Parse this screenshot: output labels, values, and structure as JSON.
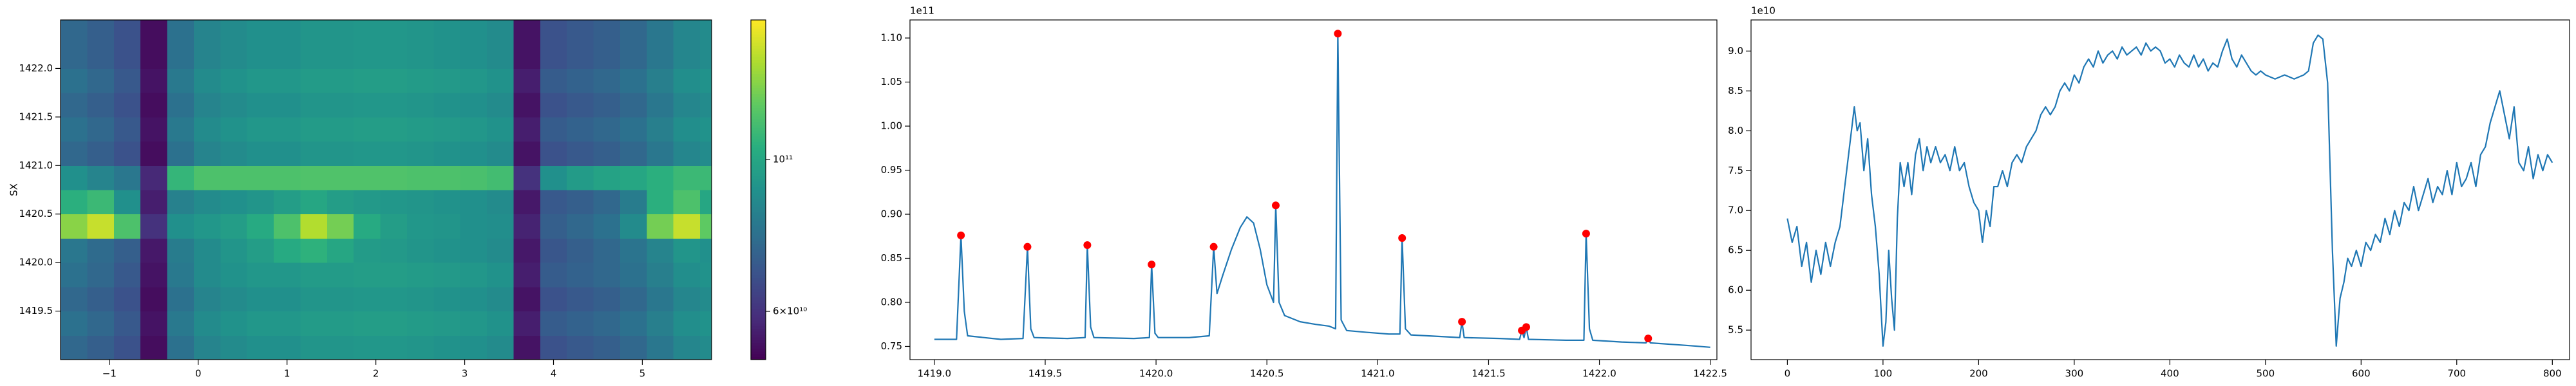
{
  "chart_data": [
    {
      "type": "heatmap",
      "ylabel": "SX",
      "x": [
        -1.4,
        -1.1,
        -0.8,
        -0.5,
        -0.2,
        0.1,
        0.4,
        0.7,
        1.0,
        1.3,
        1.6,
        1.9,
        2.2,
        2.5,
        2.8,
        3.1,
        3.4,
        3.7,
        4.0,
        4.3,
        4.6,
        4.9,
        5.2,
        5.5,
        5.8
      ],
      "y": [
        1419.125,
        1419.375,
        1419.625,
        1419.875,
        1420.125,
        1420.375,
        1420.625,
        1420.875,
        1421.125,
        1421.375,
        1421.625,
        1421.875,
        1422.125,
        1422.375
      ],
      "z": [
        [
          75000000000.0,
          72000000000.0,
          68000000000.0,
          53000000000.0,
          78000000000.0,
          85000000000.0,
          88000000000.0,
          90000000000.0,
          90000000000.0,
          92000000000.0,
          92000000000.0,
          93000000000.0,
          93000000000.0,
          92000000000.0,
          91000000000.0,
          90000000000.0,
          88000000000.0,
          54000000000.0,
          68000000000.0,
          70000000000.0,
          72000000000.0,
          75000000000.0,
          80000000000.0,
          86000000000.0,
          88000000000.0
        ],
        [
          78000000000.0,
          75000000000.0,
          70000000000.0,
          54000000000.0,
          81000000000.0,
          88000000000.0,
          91000000000.0,
          93000000000.0,
          93000000000.0,
          95000000000.0,
          95000000000.0,
          96000000000.0,
          96000000000.0,
          95000000000.0,
          94000000000.0,
          93000000000.0,
          91000000000.0,
          56000000000.0,
          71000000000.0,
          73000000000.0,
          75000000000.0,
          78000000000.0,
          83000000000.0,
          89000000000.0,
          91000000000.0
        ],
        [
          75000000000.0,
          72000000000.0,
          68000000000.0,
          53000000000.0,
          78000000000.0,
          85000000000.0,
          88000000000.0,
          90000000000.0,
          90000000000.0,
          92000000000.0,
          92000000000.0,
          93000000000.0,
          93000000000.0,
          92000000000.0,
          91000000000.0,
          90000000000.0,
          88000000000.0,
          54000000000.0,
          68000000000.0,
          70000000000.0,
          72000000000.0,
          75000000000.0,
          80000000000.0,
          86000000000.0,
          88000000000.0
        ],
        [
          78000000000.0,
          75000000000.0,
          70000000000.0,
          54000000000.0,
          81000000000.0,
          88000000000.0,
          91000000000.0,
          93000000000.0,
          93000000000.0,
          95000000000.0,
          95000000000.0,
          96000000000.0,
          96000000000.0,
          95000000000.0,
          94000000000.0,
          93000000000.0,
          91000000000.0,
          56000000000.0,
          71000000000.0,
          73000000000.0,
          75000000000.0,
          78000000000.0,
          83000000000.0,
          89000000000.0,
          91000000000.0
        ],
        [
          80000000000.0,
          76000000000.0,
          72000000000.0,
          55000000000.0,
          82000000000.0,
          88000000000.0,
          92000000000.0,
          96000000000.0,
          102000000000.0,
          106000000000.0,
          100000000000.0,
          95000000000.0,
          94000000000.0,
          92000000000.0,
          91000000000.0,
          90000000000.0,
          88000000000.0,
          55000000000.0,
          69000000000.0,
          72000000000.0,
          75000000000.0,
          79000000000.0,
          85000000000.0,
          92000000000.0,
          90000000000.0
        ],
        [
          130000000000.0,
          145000000000.0,
          115000000000.0,
          60000000000.0,
          90000000000.0,
          93000000000.0,
          96000000000.0,
          102000000000.0,
          115000000000.0,
          140000000000.0,
          125000000000.0,
          102000000000.0,
          96000000000.0,
          93000000000.0,
          92000000000.0,
          90000000000.0,
          89000000000.0,
          57000000000.0,
          72000000000.0,
          75000000000.0,
          78000000000.0,
          88000000000.0,
          125000000000.0,
          145000000000.0,
          120000000000.0
        ],
        [
          105000000000.0,
          110000000000.0,
          90000000000.0,
          56000000000.0,
          84000000000.0,
          88000000000.0,
          90000000000.0,
          92000000000.0,
          96000000000.0,
          100000000000.0,
          96000000000.0,
          94000000000.0,
          93000000000.0,
          92000000000.0,
          91000000000.0,
          90000000000.0,
          88000000000.0,
          55000000000.0,
          70000000000.0,
          72000000000.0,
          75000000000.0,
          82000000000.0,
          105000000000.0,
          115000000000.0,
          100000000000.0
        ],
        [
          90000000000.0,
          85000000000.0,
          80000000000.0,
          58000000000.0,
          108000000000.0,
          115000000000.0,
          115000000000.0,
          115000000000.0,
          115000000000.0,
          116000000000.0,
          116000000000.0,
          116000000000.0,
          116000000000.0,
          115000000000.0,
          115000000000.0,
          114000000000.0,
          112000000000.0,
          60000000000.0,
          90000000000.0,
          95000000000.0,
          98000000000.0,
          100000000000.0,
          105000000000.0,
          110000000000.0,
          110000000000.0
        ],
        [
          75000000000.0,
          72000000000.0,
          68000000000.0,
          53000000000.0,
          78000000000.0,
          85000000000.0,
          88000000000.0,
          90000000000.0,
          90000000000.0,
          92000000000.0,
          92000000000.0,
          93000000000.0,
          93000000000.0,
          92000000000.0,
          91000000000.0,
          90000000000.0,
          88000000000.0,
          54000000000.0,
          68000000000.0,
          70000000000.0,
          72000000000.0,
          75000000000.0,
          80000000000.0,
          86000000000.0,
          88000000000.0
        ],
        [
          78000000000.0,
          75000000000.0,
          70000000000.0,
          54000000000.0,
          81000000000.0,
          88000000000.0,
          91000000000.0,
          93000000000.0,
          93000000000.0,
          95000000000.0,
          95000000000.0,
          96000000000.0,
          96000000000.0,
          95000000000.0,
          94000000000.0,
          93000000000.0,
          91000000000.0,
          56000000000.0,
          71000000000.0,
          73000000000.0,
          75000000000.0,
          78000000000.0,
          83000000000.0,
          89000000000.0,
          91000000000.0
        ],
        [
          75000000000.0,
          72000000000.0,
          68000000000.0,
          53000000000.0,
          78000000000.0,
          85000000000.0,
          88000000000.0,
          90000000000.0,
          90000000000.0,
          92000000000.0,
          92000000000.0,
          93000000000.0,
          93000000000.0,
          92000000000.0,
          91000000000.0,
          90000000000.0,
          88000000000.0,
          54000000000.0,
          68000000000.0,
          70000000000.0,
          72000000000.0,
          75000000000.0,
          80000000000.0,
          86000000000.0,
          88000000000.0
        ],
        [
          78000000000.0,
          75000000000.0,
          70000000000.0,
          54000000000.0,
          81000000000.0,
          88000000000.0,
          91000000000.0,
          93000000000.0,
          93000000000.0,
          95000000000.0,
          95000000000.0,
          96000000000.0,
          96000000000.0,
          95000000000.0,
          94000000000.0,
          93000000000.0,
          91000000000.0,
          56000000000.0,
          71000000000.0,
          73000000000.0,
          75000000000.0,
          78000000000.0,
          83000000000.0,
          89000000000.0,
          91000000000.0
        ],
        [
          75000000000.0,
          72000000000.0,
          68000000000.0,
          53000000000.0,
          78000000000.0,
          85000000000.0,
          88000000000.0,
          90000000000.0,
          90000000000.0,
          92000000000.0,
          92000000000.0,
          93000000000.0,
          93000000000.0,
          92000000000.0,
          91000000000.0,
          90000000000.0,
          88000000000.0,
          54000000000.0,
          68000000000.0,
          70000000000.0,
          72000000000.0,
          75000000000.0,
          80000000000.0,
          86000000000.0,
          88000000000.0
        ],
        [
          75000000000.0,
          72000000000.0,
          68000000000.0,
          53000000000.0,
          78000000000.0,
          85000000000.0,
          88000000000.0,
          90000000000.0,
          90000000000.0,
          92000000000.0,
          92000000000.0,
          93000000000.0,
          93000000000.0,
          92000000000.0,
          91000000000.0,
          90000000000.0,
          88000000000.0,
          54000000000.0,
          68000000000.0,
          70000000000.0,
          72000000000.0,
          75000000000.0,
          80000000000.0,
          86000000000.0,
          88000000000.0
        ]
      ],
      "colormap": "viridis",
      "xlim": [
        -1.55,
        5.78
      ],
      "ylim": [
        1419.0,
        1422.5
      ],
      "xticks": [
        {
          "value": -1,
          "label": "−1"
        },
        0,
        1,
        2,
        3,
        4,
        5
      ],
      "yticks": [
        1419.5,
        {
          "value": 1420.0,
          "label": "1420.0"
        },
        1420.5,
        {
          "value": 1421.0,
          "label": "1421.0"
        },
        1421.5,
        {
          "value": 1422.0,
          "label": "1422.0"
        }
      ],
      "colorbar": {
        "log": true,
        "lim": [
          51000000000.0,
          160000000000.0
        ],
        "ticks": [
          {
            "value": 60000000000.0,
            "label": "6×10¹⁰"
          },
          {
            "value": 100000000000.0,
            "label": "10¹¹"
          }
        ]
      }
    },
    {
      "type": "line",
      "offset_text": "1e11",
      "color": "#1f77b4",
      "x": [
        1419.0,
        1419.1,
        1419.12,
        1419.135,
        1419.15,
        1419.3,
        1419.4,
        1419.42,
        1419.435,
        1419.45,
        1419.6,
        1419.68,
        1419.69,
        1419.705,
        1419.72,
        1419.9,
        1419.97,
        1419.98,
        1419.995,
        1420.01,
        1420.15,
        1420.24,
        1420.26,
        1420.275,
        1420.3,
        1420.34,
        1420.38,
        1420.41,
        1420.44,
        1420.47,
        1420.5,
        1420.53,
        1420.54,
        1420.555,
        1420.58,
        1420.65,
        1420.72,
        1420.78,
        1420.81,
        1420.82,
        1420.835,
        1420.86,
        1420.95,
        1421.05,
        1421.1,
        1421.11,
        1421.125,
        1421.15,
        1421.3,
        1421.37,
        1421.38,
        1421.39,
        1421.55,
        1421.64,
        1421.65,
        1421.66,
        1421.67,
        1421.68,
        1421.85,
        1421.93,
        1421.94,
        1421.955,
        1421.97,
        1422.1,
        1422.21,
        1422.22,
        1422.23,
        1422.4,
        1422.5
      ],
      "values": [
        0.758,
        0.758,
        0.876,
        0.79,
        0.762,
        0.758,
        0.759,
        0.863,
        0.77,
        0.76,
        0.759,
        0.76,
        0.865,
        0.772,
        0.76,
        0.759,
        0.76,
        0.843,
        0.765,
        0.76,
        0.76,
        0.762,
        0.863,
        0.81,
        0.83,
        0.86,
        0.885,
        0.897,
        0.89,
        0.86,
        0.82,
        0.8,
        0.91,
        0.8,
        0.785,
        0.778,
        0.775,
        0.773,
        0.77,
        1.105,
        0.78,
        0.768,
        0.766,
        0.764,
        0.764,
        0.873,
        0.77,
        0.763,
        0.761,
        0.76,
        0.778,
        0.76,
        0.759,
        0.758,
        0.768,
        0.76,
        0.772,
        0.758,
        0.757,
        0.757,
        0.878,
        0.77,
        0.757,
        0.755,
        0.754,
        0.759,
        0.754,
        0.751,
        0.749
      ],
      "markers": {
        "color": "#ff0000",
        "x": [
          1419.12,
          1419.42,
          1419.69,
          1419.98,
          1420.26,
          1420.54,
          1420.82,
          1421.11,
          1421.38,
          1421.65,
          1421.67,
          1421.94,
          1422.22
        ],
        "values": [
          0.876,
          0.863,
          0.865,
          0.843,
          0.863,
          0.91,
          1.105,
          0.873,
          0.778,
          0.768,
          0.772,
          0.878,
          0.759
        ]
      },
      "xlim": [
        1418.89,
        1422.53
      ],
      "ylim": [
        0.735,
        1.1205
      ],
      "xticks": [
        {
          "value": 1419.0,
          "label": "1419.0"
        },
        1419.5,
        {
          "value": 1420.0,
          "label": "1420.0"
        },
        1420.5,
        {
          "value": 1421.0,
          "label": "1421.0"
        },
        1421.5,
        {
          "value": 1422.0,
          "label": "1422.0"
        },
        1422.5
      ],
      "yticks": [
        0.75,
        {
          "value": 0.8,
          "label": "0.80"
        },
        0.85,
        {
          "value": 0.9,
          "label": "0.90"
        },
        0.95,
        {
          "value": 1.0,
          "label": "1.00"
        },
        1.05,
        {
          "value": 1.1,
          "label": "1.10"
        }
      ]
    },
    {
      "type": "line",
      "offset_text": "1e10",
      "color": "#1f77b4",
      "x": [
        0,
        5,
        10,
        15,
        20,
        25,
        30,
        35,
        40,
        45,
        50,
        55,
        60,
        65,
        70,
        73,
        76,
        80,
        84,
        88,
        92,
        96,
        100,
        103,
        106,
        109,
        112,
        115,
        118,
        122,
        126,
        130,
        134,
        138,
        142,
        146,
        150,
        155,
        160,
        165,
        170,
        175,
        180,
        185,
        190,
        195,
        200,
        204,
        208,
        212,
        216,
        220,
        225,
        230,
        235,
        240,
        245,
        250,
        255,
        260,
        265,
        270,
        275,
        280,
        285,
        290,
        295,
        300,
        305,
        310,
        315,
        320,
        325,
        330,
        335,
        340,
        345,
        350,
        355,
        360,
        365,
        370,
        375,
        380,
        385,
        390,
        395,
        400,
        405,
        410,
        415,
        420,
        425,
        430,
        435,
        440,
        445,
        450,
        455,
        460,
        465,
        470,
        475,
        480,
        485,
        490,
        495,
        500,
        510,
        520,
        530,
        540,
        545,
        550,
        555,
        560,
        565,
        570,
        574,
        578,
        582,
        586,
        590,
        595,
        600,
        605,
        610,
        615,
        620,
        625,
        630,
        635,
        640,
        645,
        650,
        655,
        660,
        665,
        670,
        675,
        680,
        685,
        690,
        695,
        700,
        705,
        710,
        715,
        720,
        725,
        730,
        735,
        740,
        745,
        750,
        755,
        760,
        765,
        770,
        775,
        780,
        785,
        790,
        795,
        800
      ],
      "values": [
        6.9,
        6.6,
        6.8,
        6.3,
        6.6,
        6.1,
        6.5,
        6.2,
        6.6,
        6.3,
        6.6,
        6.8,
        7.3,
        7.8,
        8.3,
        8.0,
        8.1,
        7.5,
        7.9,
        7.2,
        6.8,
        6.2,
        5.3,
        5.6,
        6.5,
        5.9,
        5.5,
        6.9,
        7.6,
        7.3,
        7.6,
        7.2,
        7.7,
        7.9,
        7.5,
        7.8,
        7.6,
        7.8,
        7.6,
        7.7,
        7.5,
        7.8,
        7.5,
        7.6,
        7.3,
        7.1,
        7.0,
        6.6,
        7.0,
        6.8,
        7.3,
        7.3,
        7.5,
        7.3,
        7.6,
        7.7,
        7.6,
        7.8,
        7.9,
        8.0,
        8.2,
        8.3,
        8.2,
        8.3,
        8.5,
        8.6,
        8.5,
        8.7,
        8.6,
        8.8,
        8.9,
        8.8,
        9.0,
        8.85,
        8.95,
        9.0,
        8.9,
        9.05,
        8.95,
        9.0,
        9.05,
        8.95,
        9.1,
        9.0,
        9.05,
        9.0,
        8.85,
        8.9,
        8.8,
        8.95,
        8.85,
        8.8,
        8.95,
        8.8,
        8.9,
        8.75,
        8.85,
        8.8,
        9.0,
        9.15,
        8.9,
        8.8,
        8.95,
        8.85,
        8.75,
        8.7,
        8.75,
        8.7,
        8.65,
        8.7,
        8.65,
        8.7,
        8.75,
        9.1,
        9.2,
        9.15,
        8.6,
        6.5,
        5.3,
        5.9,
        6.1,
        6.4,
        6.3,
        6.5,
        6.3,
        6.6,
        6.5,
        6.7,
        6.6,
        6.9,
        6.7,
        7.0,
        6.8,
        7.1,
        7.0,
        7.3,
        7.0,
        7.2,
        7.4,
        7.1,
        7.3,
        7.2,
        7.5,
        7.2,
        7.6,
        7.3,
        7.4,
        7.6,
        7.3,
        7.7,
        7.8,
        8.1,
        8.3,
        8.5,
        8.2,
        7.9,
        8.3,
        7.6,
        7.5,
        7.8,
        7.4,
        7.7,
        7.5,
        7.7,
        7.6
      ],
      "xlim": [
        -38,
        818
      ],
      "ylim": [
        5.13,
        9.39
      ],
      "xticks": [
        0,
        100,
        200,
        300,
        400,
        500,
        600,
        700,
        800
      ],
      "yticks": [
        5.5,
        {
          "value": 6.0,
          "label": "6.0"
        },
        6.5,
        {
          "value": 7.0,
          "label": "7.0"
        },
        7.5,
        {
          "value": 8.0,
          "label": "8.0"
        },
        8.5,
        {
          "value": 9.0,
          "label": "9.0"
        }
      ]
    }
  ]
}
